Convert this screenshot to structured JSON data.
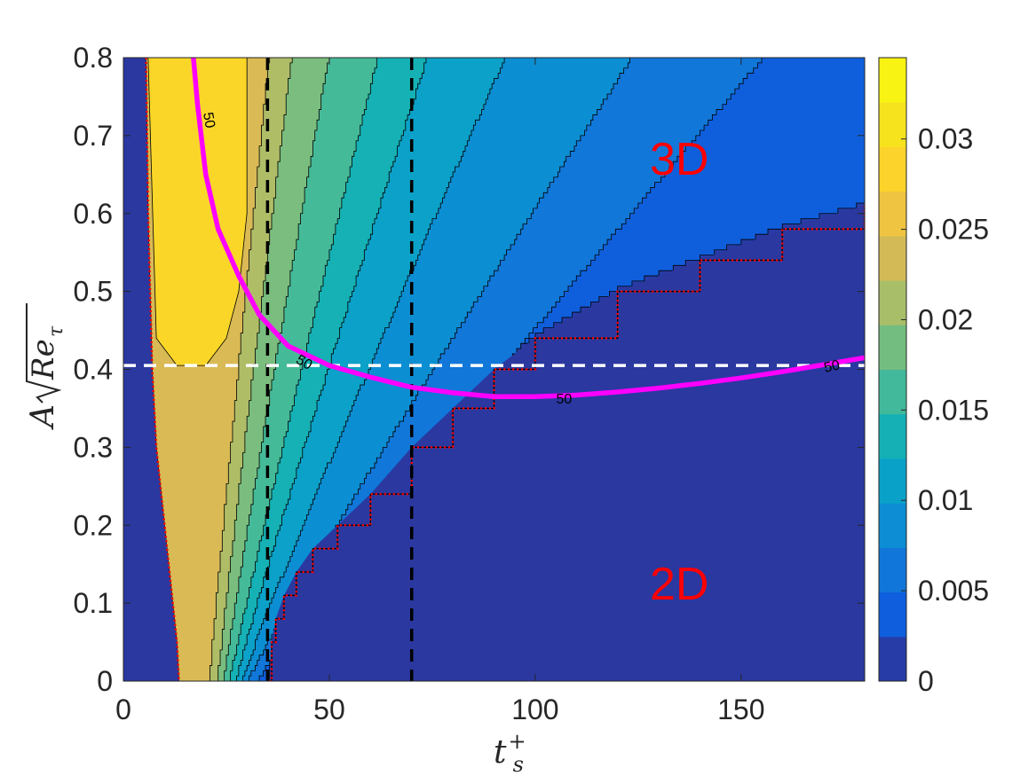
{
  "chart_data": {
    "type": "heatmap",
    "subtype": "filled-contour",
    "xlabel": "t_s^+",
    "ylabel": "A√Re_τ",
    "xlim": [
      0,
      180
    ],
    "ylim": [
      0,
      0.8
    ],
    "xticks": [
      0,
      50,
      100,
      150
    ],
    "xtick_labels": [
      "0",
      "50",
      "100",
      "150"
    ],
    "yticks": [
      0,
      0.1,
      0.2,
      0.3,
      0.4,
      0.5,
      0.6,
      0.7,
      0.8
    ],
    "ytick_labels": [
      "0",
      "0.1",
      "0.2",
      "0.3",
      "0.4",
      "0.5",
      "0.6",
      "0.7",
      "0.8"
    ],
    "colorbar": {
      "colormap": "parula",
      "range": [
        0,
        0.0345
      ],
      "ticks": [
        0,
        0.005,
        0.01,
        0.015,
        0.02,
        0.025,
        0.03
      ],
      "tick_labels": [
        "0",
        "0.005",
        "0.01",
        "0.015",
        "0.02",
        "0.025",
        "0.03"
      ]
    },
    "contour_level_step": 0.0025,
    "contour_boundaries_at_y0": [
      {
        "level": 0.0025,
        "x": 35.5
      },
      {
        "level": 0.005,
        "x": 33.0
      },
      {
        "level": 0.0075,
        "x": 30.5
      },
      {
        "level": 0.01,
        "x": 29.0
      },
      {
        "level": 0.0125,
        "x": 27.5
      },
      {
        "level": 0.015,
        "x": 26.0
      },
      {
        "level": 0.0175,
        "x": 24.5
      },
      {
        "level": 0.02,
        "x": 23.0
      },
      {
        "level": 0.0225,
        "x": 21.0
      }
    ],
    "contour_boundaries_at_y08": [
      {
        "level": 0.0025,
        "x": 180
      },
      {
        "level": 0.005,
        "x": 156
      },
      {
        "level": 0.0075,
        "x": 124
      },
      {
        "level": 0.01,
        "x": 93
      },
      {
        "level": 0.0125,
        "x": 74
      },
      {
        "level": 0.015,
        "x": 62
      },
      {
        "level": 0.0175,
        "x": 50
      },
      {
        "level": 0.02,
        "x": 41
      },
      {
        "level": 0.0225,
        "x": 35.5
      },
      {
        "level": 0.025,
        "x": 30
      },
      {
        "level": 0.0275,
        "x": 27.5
      }
    ],
    "threshold_boundary_red_dotted": {
      "x": [
        35.5,
        36,
        37,
        39,
        42,
        46,
        52,
        60,
        70,
        80,
        90,
        100,
        120,
        140,
        160,
        180
      ],
      "y": [
        0,
        0.05,
        0.08,
        0.11,
        0.14,
        0.17,
        0.2,
        0.24,
        0.3,
        0.35,
        0.4,
        0.44,
        0.5,
        0.54,
        0.58,
        0.61
      ]
    },
    "left_boundary_red_dotted": {
      "x": [
        5.5,
        6,
        7,
        8,
        9,
        10,
        11,
        12,
        13,
        13.5
      ],
      "y": [
        0.8,
        0.6,
        0.4,
        0.3,
        0.25,
        0.2,
        0.15,
        0.1,
        0.05,
        0
      ]
    },
    "magenta_contour": {
      "label": "50",
      "x": [
        17,
        18,
        20,
        23,
        28,
        33,
        40,
        50,
        60,
        70,
        80,
        90,
        100,
        110,
        120,
        130,
        140,
        150,
        160,
        170,
        180
      ],
      "y": [
        0.8,
        0.74,
        0.65,
        0.58,
        0.52,
        0.47,
        0.43,
        0.405,
        0.39,
        0.377,
        0.37,
        0.365,
        0.365,
        0.367,
        0.371,
        0.376,
        0.382,
        0.389,
        0.397,
        0.406,
        0.415
      ]
    },
    "reference_lines": [
      {
        "orientation": "vertical",
        "x": 35,
        "color": "#000000",
        "style": "dashed"
      },
      {
        "orientation": "vertical",
        "x": 70,
        "color": "#000000",
        "style": "dashed"
      },
      {
        "orientation": "horizontal",
        "y": 0.405,
        "color": "#ffffff",
        "style": "dashed"
      }
    ],
    "annotations": [
      {
        "text": "3D",
        "x": 135,
        "y": 0.67,
        "color": "#ff0000"
      },
      {
        "text": "2D",
        "x": 135,
        "y": 0.125,
        "color": "#ff0000"
      }
    ],
    "grid": false
  }
}
